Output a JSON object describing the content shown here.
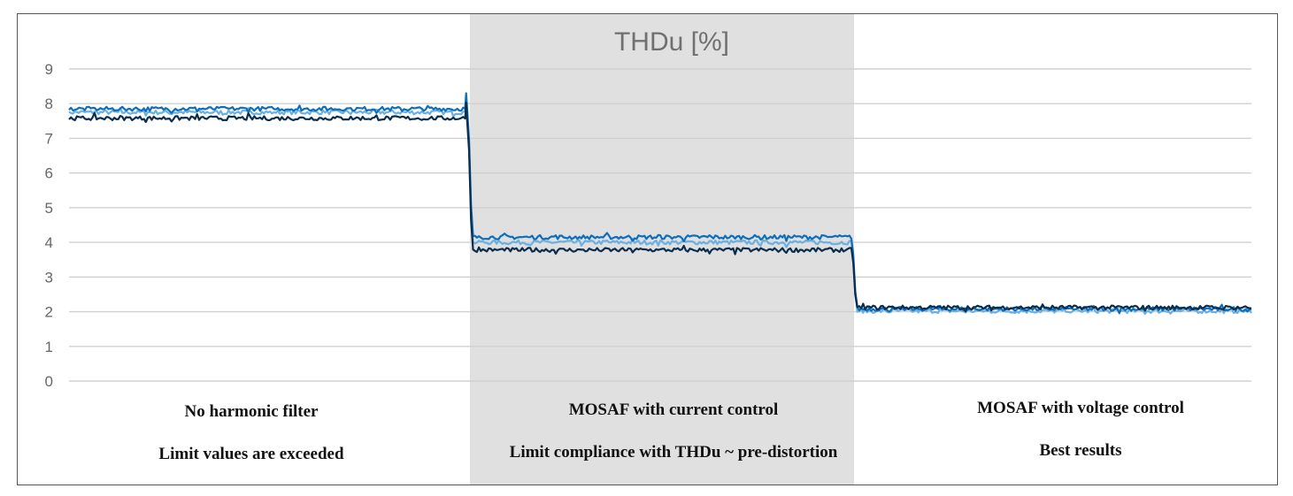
{
  "chart_data": {
    "type": "line",
    "title": "THDu [%]",
    "xlabel": "",
    "ylabel": "",
    "ylim": [
      0,
      9
    ],
    "yticks": [
      "0",
      "1",
      "2",
      "3",
      "4",
      "5",
      "6",
      "7",
      "8",
      "9"
    ],
    "grid": true,
    "legend": "none",
    "x_range": [
      0,
      1200
    ],
    "segment_boundaries": [
      405,
      795
    ],
    "highlighted_segment": 1,
    "colors": {
      "background_highlight": "#e0e0e0",
      "grid": "#d0d0d0",
      "series": [
        "#0a2d4d",
        "#0d6ebd",
        "#6ab0e2"
      ]
    },
    "series": [
      {
        "levels": [
          7.58,
          3.78,
          2.12
        ],
        "x": [
          0,
          200,
          400,
          405,
          600,
          795,
          1000,
          1200
        ],
        "values": [
          7.58,
          7.6,
          7.65,
          3.8,
          3.78,
          3.72,
          2.12,
          2.18
        ]
      },
      {
        "levels": [
          7.85,
          4.15,
          2.08
        ],
        "x": [
          0,
          200,
          400,
          405,
          600,
          795,
          1000,
          1200
        ],
        "values": [
          7.9,
          7.85,
          7.9,
          4.2,
          4.15,
          4.18,
          2.08,
          2.12
        ]
      },
      {
        "levels": [
          7.75,
          4.0,
          2.02
        ],
        "x": [
          0,
          200,
          400,
          405,
          600,
          795,
          1000,
          1200
        ],
        "values": [
          7.78,
          7.75,
          7.8,
          4.05,
          4.0,
          4.05,
          2.0,
          2.05
        ]
      }
    ],
    "annotations": [
      {
        "line1": "No harmonic filter",
        "line2": "Limit values are exceeded"
      },
      {
        "line1": "MOSAF with current control",
        "line2": "Limit compliance with THDu ~ pre-distortion"
      },
      {
        "line1": "MOSAF with voltage control",
        "line2": "Best results"
      }
    ]
  }
}
